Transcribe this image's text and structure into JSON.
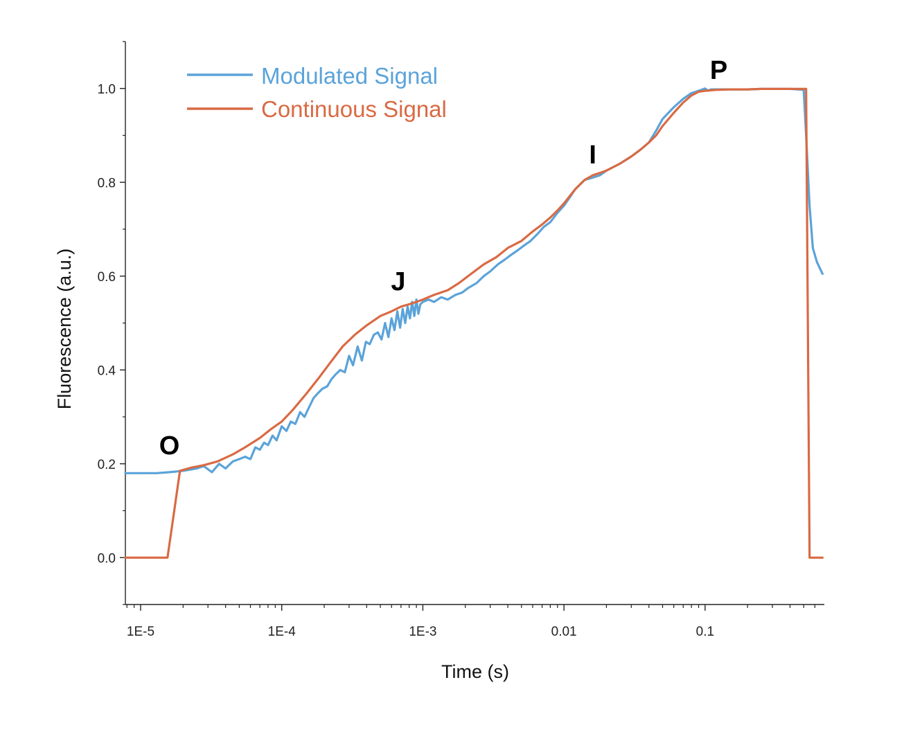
{
  "chart_data": {
    "type": "line",
    "xlabel": "Time (s)",
    "ylabel": "Fluorescence (a.u.)",
    "x_scale": "log",
    "xlim": [
      7.8e-06,
      0.7
    ],
    "ylim": [
      -0.1,
      1.1
    ],
    "grid": false,
    "legend_position": "top-left",
    "x_ticks": [
      {
        "value": 1e-05,
        "label": "1E-5"
      },
      {
        "value": 0.0001,
        "label": "1E-4"
      },
      {
        "value": 0.001,
        "label": "1E-3"
      },
      {
        "value": 0.01,
        "label": "0.01"
      },
      {
        "value": 0.1,
        "label": "0.1"
      }
    ],
    "y_ticks": [
      {
        "value": 0.0,
        "label": "0.0"
      },
      {
        "value": 0.2,
        "label": "0.2"
      },
      {
        "value": 0.4,
        "label": "0.4"
      },
      {
        "value": 0.6,
        "label": "0.6"
      },
      {
        "value": 0.8,
        "label": "0.8"
      },
      {
        "value": 1.0,
        "label": "1.0"
      }
    ],
    "series": [
      {
        "name": "Modulated Signal",
        "color": "#5ba3d9",
        "x": [
          7.8e-06,
          1e-05,
          1.3e-05,
          1.6e-05,
          2e-05,
          2.5e-05,
          2.8e-05,
          3.2e-05,
          3.6e-05,
          4e-05,
          4.5e-05,
          5e-05,
          5.5e-05,
          6e-05,
          6.5e-05,
          7e-05,
          7.5e-05,
          8e-05,
          8.6e-05,
          9.2e-05,
          0.0001,
          0.000108,
          0.000116,
          0.000125,
          0.000135,
          0.000145,
          0.000156,
          0.000168,
          0.00018,
          0.000194,
          0.00021,
          0.000225,
          0.00024,
          0.00026,
          0.00028,
          0.0003,
          0.00032,
          0.000345,
          0.00037,
          0.000395,
          0.00042,
          0.00045,
          0.00048,
          0.00051,
          0.00054,
          0.00057,
          0.0006,
          0.00063,
          0.00066,
          0.00069,
          0.00072,
          0.00075,
          0.00078,
          0.00081,
          0.00084,
          0.00087,
          0.0009,
          0.00093,
          0.00096,
          0.001,
          0.0011,
          0.0012,
          0.00135,
          0.0015,
          0.0017,
          0.0019,
          0.0021,
          0.0024,
          0.0027,
          0.003,
          0.0034,
          0.0038,
          0.0042,
          0.0047,
          0.0052,
          0.0058,
          0.0065,
          0.0072,
          0.008,
          0.009,
          0.01,
          0.011,
          0.012,
          0.014,
          0.016,
          0.018,
          0.02,
          0.025,
          0.03,
          0.035,
          0.04,
          0.045,
          0.05,
          0.06,
          0.07,
          0.08,
          0.09,
          0.1,
          0.105,
          0.11,
          0.13,
          0.16,
          0.2,
          0.25,
          0.3,
          0.4,
          0.5,
          0.52,
          0.55,
          0.58,
          0.62,
          0.68
        ],
        "y": [
          0.18,
          0.18,
          0.18,
          0.182,
          0.185,
          0.19,
          0.195,
          0.182,
          0.2,
          0.19,
          0.205,
          0.21,
          0.215,
          0.21,
          0.235,
          0.23,
          0.245,
          0.24,
          0.26,
          0.25,
          0.28,
          0.27,
          0.29,
          0.285,
          0.31,
          0.3,
          0.32,
          0.34,
          0.35,
          0.36,
          0.365,
          0.38,
          0.39,
          0.4,
          0.395,
          0.43,
          0.41,
          0.45,
          0.42,
          0.46,
          0.455,
          0.475,
          0.48,
          0.465,
          0.5,
          0.47,
          0.51,
          0.485,
          0.525,
          0.49,
          0.53,
          0.5,
          0.535,
          0.51,
          0.545,
          0.515,
          0.55,
          0.52,
          0.54,
          0.545,
          0.55,
          0.545,
          0.555,
          0.55,
          0.56,
          0.565,
          0.575,
          0.585,
          0.6,
          0.61,
          0.625,
          0.635,
          0.645,
          0.655,
          0.665,
          0.675,
          0.69,
          0.705,
          0.715,
          0.735,
          0.75,
          0.768,
          0.785,
          0.805,
          0.81,
          0.815,
          0.825,
          0.84,
          0.855,
          0.87,
          0.885,
          0.91,
          0.935,
          0.96,
          0.978,
          0.99,
          0.995,
          1.0,
          0.995,
          0.998,
          0.998,
          0.998,
          0.998,
          0.999,
          0.999,
          0.999,
          0.997,
          0.9,
          0.75,
          0.66,
          0.63,
          0.605
        ]
      },
      {
        "name": "Continuous Signal",
        "color": "#d96a43",
        "x": [
          7.8e-06,
          1e-05,
          1.3e-05,
          1.55e-05,
          1.9e-05,
          2.3e-05,
          2.8e-05,
          3.5e-05,
          4.5e-05,
          5.5e-05,
          7e-05,
          8.5e-05,
          0.0001,
          0.00012,
          0.00015,
          0.00018,
          0.00022,
          0.00027,
          0.00033,
          0.0004,
          0.0005,
          0.0006,
          0.0007,
          0.0008,
          0.0009,
          0.001,
          0.0012,
          0.0015,
          0.0018,
          0.0022,
          0.0027,
          0.0033,
          0.004,
          0.005,
          0.006,
          0.007,
          0.008,
          0.009,
          0.01,
          0.012,
          0.014,
          0.016,
          0.018,
          0.02,
          0.025,
          0.03,
          0.035,
          0.04,
          0.045,
          0.05,
          0.06,
          0.07,
          0.08,
          0.09,
          0.1,
          0.12,
          0.15,
          0.2,
          0.25,
          0.3,
          0.35,
          0.4,
          0.45,
          0.5,
          0.52,
          0.55,
          0.58,
          0.62,
          0.68
        ],
        "y": [
          0.0,
          0.0,
          0.0,
          0.0,
          0.185,
          0.192,
          0.197,
          0.205,
          0.22,
          0.235,
          0.255,
          0.275,
          0.29,
          0.315,
          0.35,
          0.38,
          0.415,
          0.45,
          0.475,
          0.495,
          0.515,
          0.525,
          0.535,
          0.54,
          0.545,
          0.55,
          0.56,
          0.57,
          0.585,
          0.605,
          0.625,
          0.64,
          0.66,
          0.675,
          0.695,
          0.71,
          0.725,
          0.74,
          0.755,
          0.785,
          0.805,
          0.815,
          0.82,
          0.825,
          0.84,
          0.855,
          0.87,
          0.885,
          0.9,
          0.92,
          0.948,
          0.97,
          0.985,
          0.993,
          0.995,
          0.997,
          0.998,
          0.998,
          0.999,
          0.999,
          0.999,
          0.999,
          0.999,
          0.999,
          0.999,
          0.0,
          0.0,
          0.0,
          0.0
        ]
      }
    ],
    "annotations": [
      {
        "text": "O",
        "x": 1.6e-05,
        "y": 0.22
      },
      {
        "text": "J",
        "x": 0.00067,
        "y": 0.57
      },
      {
        "text": "I",
        "x": 0.016,
        "y": 0.84
      },
      {
        "text": "P",
        "x": 0.125,
        "y": 1.02
      }
    ]
  }
}
